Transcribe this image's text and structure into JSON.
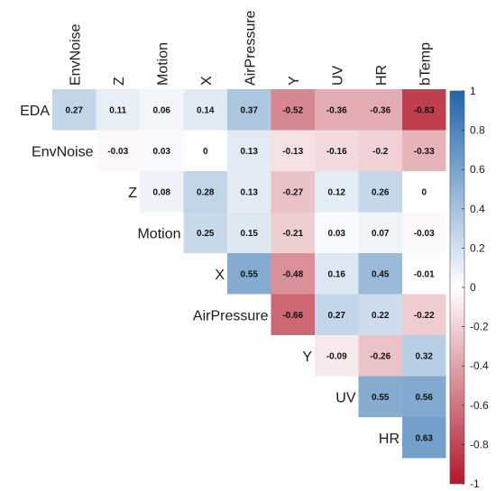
{
  "chart_data": {
    "type": "heatmap",
    "title": "",
    "columns": [
      "EnvNoise",
      "Z",
      "Motion",
      "X",
      "AirPressure",
      "Y",
      "UV",
      "HR",
      "bTemp"
    ],
    "rows": [
      "EDA",
      "EnvNoise",
      "Z",
      "Motion",
      "X",
      "AirPressure",
      "Y",
      "UV",
      "HR"
    ],
    "cells": [
      {
        "row": "EDA",
        "col": "EnvNoise",
        "value": 0.27
      },
      {
        "row": "EDA",
        "col": "Z",
        "value": 0.11
      },
      {
        "row": "EDA",
        "col": "Motion",
        "value": 0.06
      },
      {
        "row": "EDA",
        "col": "X",
        "value": 0.14
      },
      {
        "row": "EDA",
        "col": "AirPressure",
        "value": 0.37
      },
      {
        "row": "EDA",
        "col": "Y",
        "value": -0.52
      },
      {
        "row": "EDA",
        "col": "UV",
        "value": -0.36
      },
      {
        "row": "EDA",
        "col": "HR",
        "value": -0.36
      },
      {
        "row": "EDA",
        "col": "bTemp",
        "value": -0.83
      },
      {
        "row": "EnvNoise",
        "col": "Z",
        "value": -0.03
      },
      {
        "row": "EnvNoise",
        "col": "Motion",
        "value": 0.03
      },
      {
        "row": "EnvNoise",
        "col": "X",
        "value": 0
      },
      {
        "row": "EnvNoise",
        "col": "AirPressure",
        "value": 0.13
      },
      {
        "row": "EnvNoise",
        "col": "Y",
        "value": -0.13
      },
      {
        "row": "EnvNoise",
        "col": "UV",
        "value": -0.16
      },
      {
        "row": "EnvNoise",
        "col": "HR",
        "value": -0.2
      },
      {
        "row": "EnvNoise",
        "col": "bTemp",
        "value": -0.33
      },
      {
        "row": "Z",
        "col": "Motion",
        "value": 0.08
      },
      {
        "row": "Z",
        "col": "X",
        "value": 0.28
      },
      {
        "row": "Z",
        "col": "AirPressure",
        "value": 0.13
      },
      {
        "row": "Z",
        "col": "Y",
        "value": -0.27
      },
      {
        "row": "Z",
        "col": "UV",
        "value": 0.12
      },
      {
        "row": "Z",
        "col": "HR",
        "value": 0.26
      },
      {
        "row": "Z",
        "col": "bTemp",
        "value": 0
      },
      {
        "row": "Motion",
        "col": "X",
        "value": 0.25
      },
      {
        "row": "Motion",
        "col": "AirPressure",
        "value": 0.15
      },
      {
        "row": "Motion",
        "col": "Y",
        "value": -0.21
      },
      {
        "row": "Motion",
        "col": "UV",
        "value": 0.03
      },
      {
        "row": "Motion",
        "col": "HR",
        "value": 0.07
      },
      {
        "row": "Motion",
        "col": "bTemp",
        "value": -0.03
      },
      {
        "row": "X",
        "col": "AirPressure",
        "value": 0.55
      },
      {
        "row": "X",
        "col": "Y",
        "value": -0.48
      },
      {
        "row": "X",
        "col": "UV",
        "value": 0.16
      },
      {
        "row": "X",
        "col": "HR",
        "value": 0.45
      },
      {
        "row": "X",
        "col": "bTemp",
        "value": -0.01
      },
      {
        "row": "AirPressure",
        "col": "Y",
        "value": -0.66
      },
      {
        "row": "AirPressure",
        "col": "UV",
        "value": 0.27
      },
      {
        "row": "AirPressure",
        "col": "HR",
        "value": 0.22
      },
      {
        "row": "AirPressure",
        "col": "bTemp",
        "value": -0.22
      },
      {
        "row": "Y",
        "col": "UV",
        "value": -0.09
      },
      {
        "row": "Y",
        "col": "HR",
        "value": -0.26
      },
      {
        "row": "Y",
        "col": "bTemp",
        "value": 0.32
      },
      {
        "row": "UV",
        "col": "HR",
        "value": 0.55
      },
      {
        "row": "UV",
        "col": "bTemp",
        "value": 0.56
      },
      {
        "row": "HR",
        "col": "bTemp",
        "value": 0.63
      }
    ],
    "colorbar": {
      "range": [
        -1,
        1
      ],
      "ticks": [
        "1",
        "0.8",
        "0.6",
        "0.4",
        "0.2",
        "0",
        "-0.2",
        "-0.4",
        "-0.6",
        "-0.8",
        "-1"
      ],
      "colors": {
        "negative": "#b2182b",
        "zero": "#ffffff",
        "positive": "#2166ac"
      }
    },
    "grid": false,
    "legend": "right"
  }
}
